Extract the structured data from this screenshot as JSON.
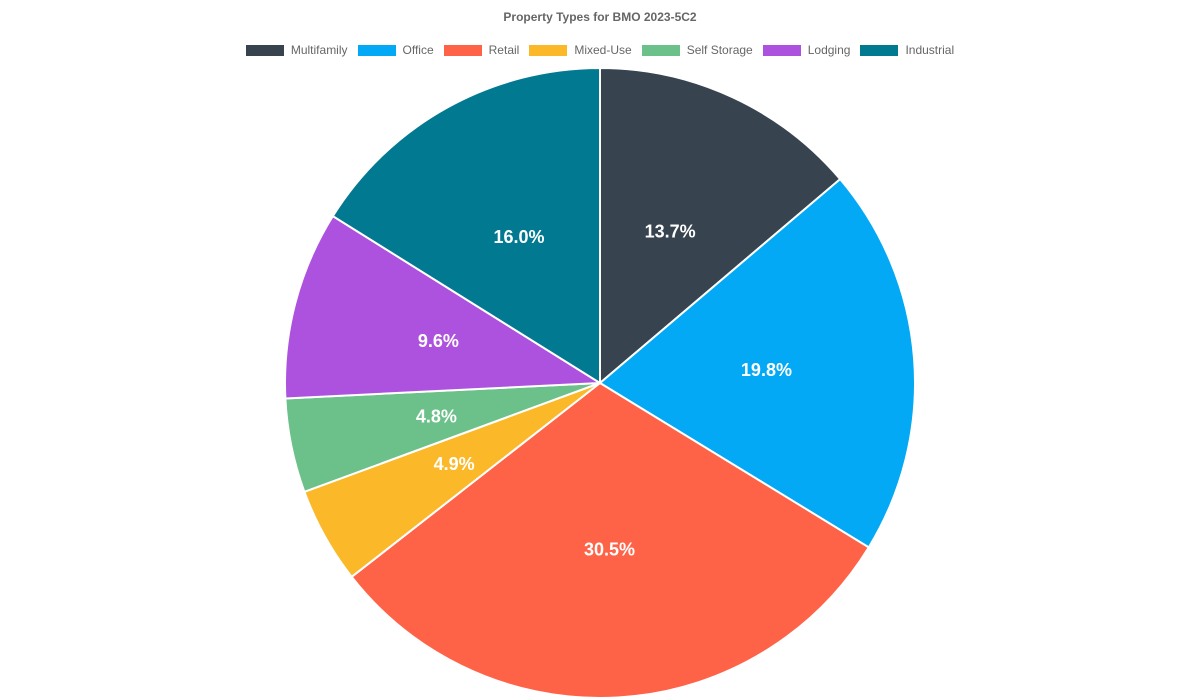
{
  "chart_data": {
    "type": "pie",
    "title": "Property Types for BMO 2023-5C2",
    "legend_position": "top",
    "slices": [
      {
        "name": "Multifamily",
        "value": 13.7,
        "label": "13.7%",
        "color": "#37434f"
      },
      {
        "name": "Office",
        "value": 19.8,
        "label": "19.8%",
        "color": "#03a9f4"
      },
      {
        "name": "Retail",
        "value": 30.5,
        "label": "30.5%",
        "color": "#ff6347"
      },
      {
        "name": "Mixed-Use",
        "value": 4.9,
        "label": "4.9%",
        "color": "#fbb829"
      },
      {
        "name": "Self Storage",
        "value": 4.8,
        "label": "4.8%",
        "color": "#6cc18a"
      },
      {
        "name": "Lodging",
        "value": 9.6,
        "label": "9.6%",
        "color": "#ad52de"
      },
      {
        "name": "Industrial",
        "value": 16.0,
        "label": "16.0%",
        "color": "#007991"
      }
    ]
  }
}
